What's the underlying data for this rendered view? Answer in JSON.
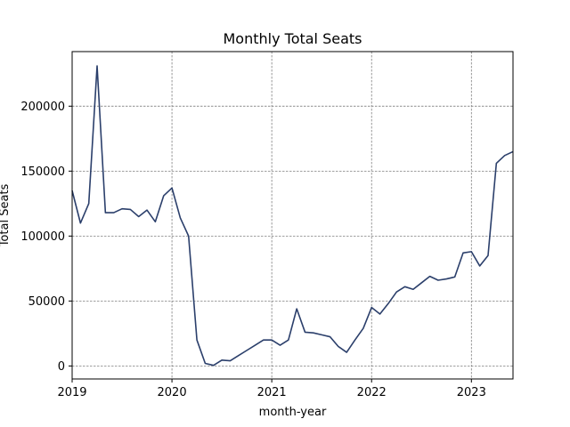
{
  "chart_data": {
    "type": "line",
    "title": "Monthly Total Seats",
    "xlabel": "month-year",
    "ylabel": "Total Seats",
    "grid": true,
    "xlim": [
      "2019-01",
      "2023-06"
    ],
    "ylim": [
      -10000,
      242000
    ],
    "x_ticks": [
      "2019",
      "2020",
      "2021",
      "2022",
      "2023"
    ],
    "y_ticks": [
      0,
      50000,
      100000,
      150000,
      200000
    ],
    "y_tick_labels": [
      "0",
      "50000",
      "100000",
      "150000",
      "200000"
    ],
    "series": [
      {
        "name": "",
        "color": "#2b3f6b",
        "x": [
          "2019-01",
          "2019-02",
          "2019-03",
          "2019-04",
          "2019-05",
          "2019-06",
          "2019-07",
          "2019-08",
          "2019-09",
          "2019-10",
          "2019-11",
          "2019-12",
          "2020-01",
          "2020-02",
          "2020-03",
          "2020-04",
          "2020-05",
          "2020-06",
          "2020-07",
          "2020-08",
          "2020-09",
          "2020-10",
          "2020-11",
          "2020-12",
          "2021-01",
          "2021-02",
          "2021-03",
          "2021-04",
          "2021-05",
          "2021-06",
          "2021-07",
          "2021-08",
          "2021-09",
          "2021-10",
          "2021-11",
          "2021-12",
          "2022-01",
          "2022-02",
          "2022-03",
          "2022-04",
          "2022-05",
          "2022-06",
          "2022-07",
          "2022-08",
          "2022-09",
          "2022-10",
          "2022-11",
          "2022-12",
          "2023-01",
          "2023-02",
          "2023-03",
          "2023-04",
          "2023-05",
          "2023-06"
        ],
        "values": [
          135000,
          110000,
          125000,
          231000,
          118000,
          118000,
          121000,
          120500,
          115000,
          120000,
          111000,
          131000,
          137000,
          114000,
          100000,
          20000,
          2000,
          500,
          4500,
          4000,
          8000,
          12000,
          16000,
          20000,
          20000,
          16000,
          20000,
          44000,
          26000,
          25500,
          24000,
          22500,
          15000,
          10500,
          20000,
          29000,
          45000,
          40000,
          48000,
          57000,
          61000,
          59000,
          64000,
          69000,
          66000,
          67000,
          68500,
          87000,
          88000,
          77000,
          85000,
          156000,
          162000,
          165000
        ]
      }
    ]
  }
}
